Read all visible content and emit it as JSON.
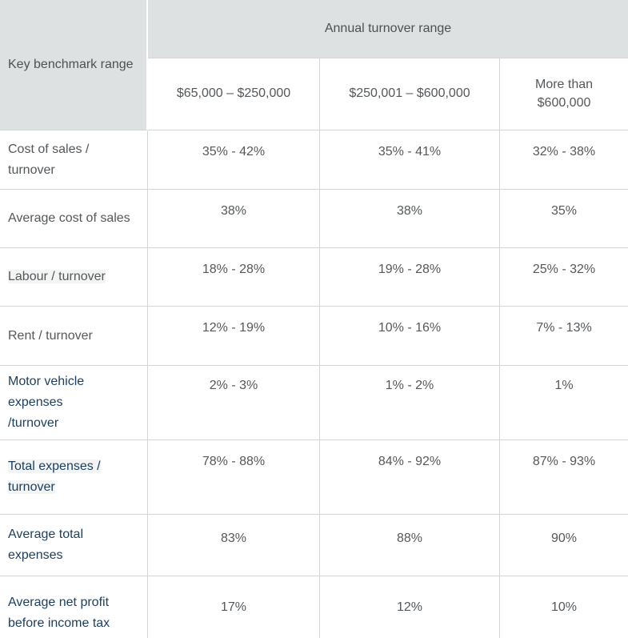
{
  "table": {
    "corner_header": "Key benchmark range",
    "group_header": "Annual turnover range",
    "column_headers": [
      "$65,000 – $250,000",
      "$250,001 – $600,000",
      "More than\n$600,000"
    ],
    "rows": [
      {
        "label": "Cost of sales / turnover",
        "values": [
          "35% - 42%",
          "35% - 41%",
          "32% - 38%"
        ],
        "link": false,
        "highlight": false
      },
      {
        "label": "Average cost of sales",
        "values": [
          "38%",
          "38%",
          "35%"
        ],
        "link": false,
        "highlight": false
      },
      {
        "label": "Labour / turnover",
        "values": [
          "18% - 28%",
          "19% - 28%",
          "25% - 32%"
        ],
        "link": false,
        "highlight": true
      },
      {
        "label": "Rent / turnover",
        "values": [
          "12% - 19%",
          "10% - 16%",
          "7% - 13%"
        ],
        "link": false,
        "highlight": false
      },
      {
        "label": "Motor vehicle expenses\n/turnover",
        "values": [
          "2% - 3%",
          "1% - 2%",
          "1%"
        ],
        "link": true,
        "highlight": false
      },
      {
        "label": "Total expenses /\nturnover",
        "values": [
          "78% - 88%",
          "84% - 92%",
          "87% - 93%"
        ],
        "link": true,
        "highlight": true
      },
      {
        "label": "Average total expenses",
        "values": [
          "83%",
          "88%",
          "90%"
        ],
        "link": true,
        "highlight": false
      },
      {
        "label": "Average net profit\nbefore income tax",
        "values": [
          "17%",
          "12%",
          "10%"
        ],
        "link": true,
        "highlight": false
      }
    ],
    "colors": {
      "header_bg": "#dee1e1",
      "border": "#d3d6d6",
      "text_gray": "#54585b",
      "link_navy": "#1b3e5f"
    }
  }
}
